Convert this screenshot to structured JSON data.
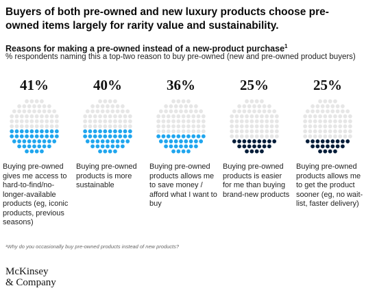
{
  "title": "Buyers of both pre-owned and new luxury products choose pre-owned items largely for rarity value and sustainability.",
  "subtitle": "Reasons for making a pre-owned instead of a new-product purchase",
  "subtitle_footnote_marker": "1",
  "note": "% respondents naming this a top-two reason to buy pre-owned (new and pre-owned product buyers)",
  "footnote": "¹Why do you occasionally buy pre-owned products instead of new products?",
  "logo": {
    "line1": "McKinsey",
    "line2": "& Company"
  },
  "colors": {
    "blue": "#20a6ee",
    "navy": "#061e3a",
    "empty": "#e6e6e6"
  },
  "chart_data": {
    "type": "dot-circle",
    "unit": "%",
    "items": [
      {
        "label": "41%",
        "value": 41,
        "description": "Buying pre-owned gives me access to hard-to-find/no-longer-available products (eg, iconic products, previous seasons)",
        "color": "#20a6ee"
      },
      {
        "label": "40%",
        "value": 40,
        "description": "Buying pre-owned products is more sustainable",
        "color": "#20a6ee"
      },
      {
        "label": "36%",
        "value": 36,
        "description": "Buying pre-owned products allows me to save money / afford what I want to buy",
        "color": "#20a6ee"
      },
      {
        "label": "25%",
        "value": 25,
        "description": "Buying pre-owned products is easier for me than buying brand-new products",
        "color": "#061e3a"
      },
      {
        "label": "25%",
        "value": 25,
        "description": "Buying pre-owned products allows me to get the product sooner (eg, no wait-list, faster delivery)",
        "color": "#061e3a"
      }
    ]
  }
}
